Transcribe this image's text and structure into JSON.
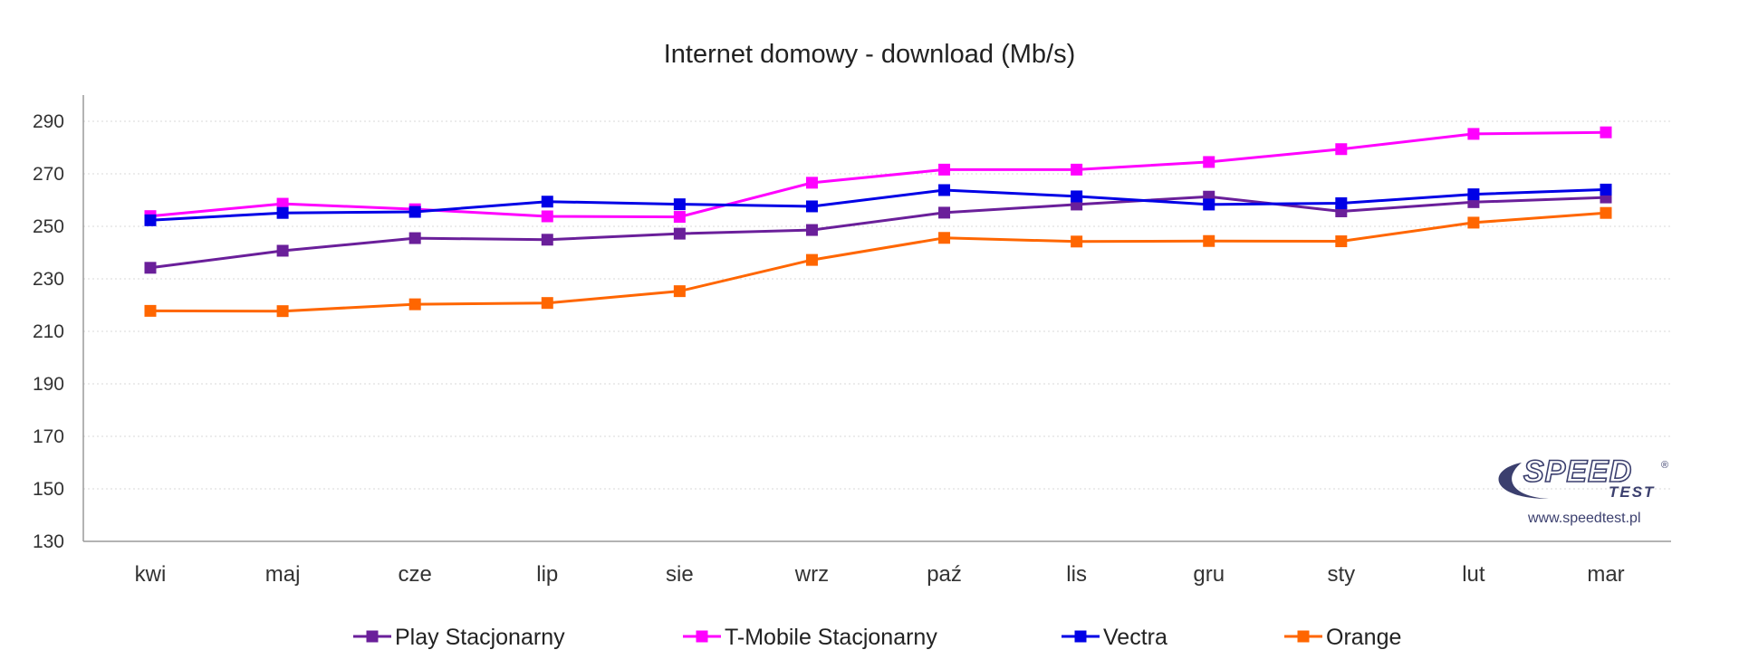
{
  "chart_data": {
    "type": "line",
    "title": "Internet domowy - download (Mb/s)",
    "xlabel": "",
    "ylabel": "",
    "categories": [
      "kwi",
      "maj",
      "cze",
      "lip",
      "sie",
      "wrz",
      "paź",
      "lis",
      "gru",
      "sty",
      "lut",
      "mar"
    ],
    "ylim": [
      130,
      300
    ],
    "yticks": [
      130,
      150,
      170,
      190,
      210,
      230,
      250,
      270,
      290
    ],
    "grid": true,
    "legend_position": "bottom",
    "series": [
      {
        "name": "Play Stacjonarny",
        "color": "#6a1f9a",
        "values": [
          234.2,
          240.7,
          245.5,
          244.9,
          247.2,
          248.6,
          255.2,
          258.3,
          261.3,
          255.7,
          259.2,
          261.0
        ]
      },
      {
        "name": "T-Mobile Stacjonarny",
        "color": "#ff00ff",
        "values": [
          253.9,
          258.6,
          256.5,
          253.8,
          253.6,
          266.6,
          271.6,
          271.6,
          274.5,
          279.4,
          285.2,
          285.8
        ]
      },
      {
        "name": "Vectra",
        "color": "#0000e6",
        "values": [
          252.3,
          255.1,
          255.5,
          259.4,
          258.4,
          257.6,
          263.8,
          261.4,
          258.3,
          258.8,
          262.2,
          264.0
        ]
      },
      {
        "name": "Orange",
        "color": "#ff6600",
        "values": [
          217.8,
          217.7,
          220.3,
          220.8,
          225.3,
          237.2,
          245.6,
          244.2,
          244.4,
          244.3,
          251.4,
          255.1
        ]
      }
    ]
  },
  "logo": {
    "brand": "SPEED TEST",
    "website": "www.speedtest.pl"
  }
}
